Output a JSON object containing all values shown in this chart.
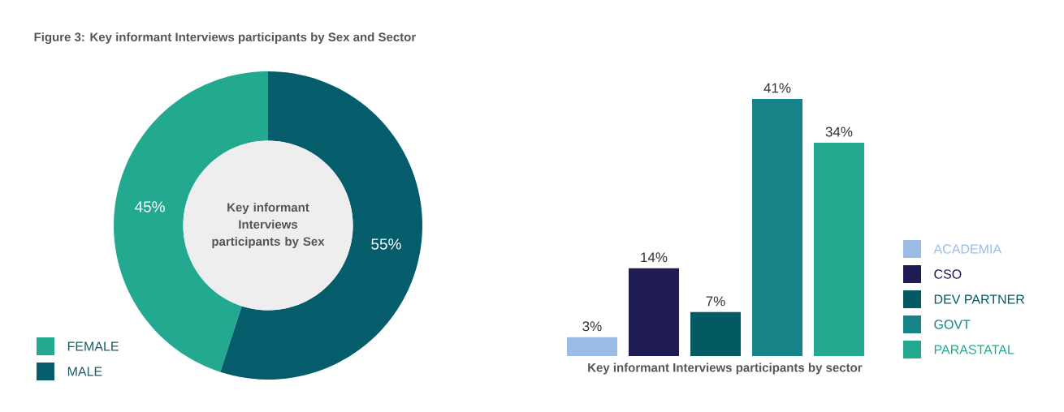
{
  "chart_data": [
    {
      "type": "donut",
      "title": "Figure 3: Key informant Interviews participants by Sex and Sector",
      "annotations": [
        "Key informant Interviews participants by Sex"
      ],
      "categories": [
        "FEMALE",
        "MALE"
      ],
      "values": [
        45,
        55
      ],
      "value_labels": [
        "45%",
        "55%"
      ],
      "colors": [
        "#22a990",
        "#055c6a"
      ],
      "legend": "bottom left"
    },
    {
      "type": "bar",
      "xlabel": "Key informant Interviews participants by sector",
      "categories": [
        null,
        null,
        null,
        null,
        null
      ],
      "legend": "right",
      "stacked": true,
      "series": [
        {
          "name": "ACADEMIA",
          "color": "#9bbde5",
          "values": [
            3,
            null,
            null,
            null,
            null
          ],
          "value_labels": [
            "3%",
            null,
            null,
            null,
            null
          ]
        },
        {
          "name": "CSO",
          "color": "#1e1c52",
          "values": [
            null,
            14,
            null,
            null,
            null
          ],
          "value_labels": [
            null,
            "14%",
            null,
            null,
            null
          ]
        },
        {
          "name": "DEV PARTNER",
          "color": "#035a63",
          "values": [
            null,
            null,
            7,
            null,
            null
          ],
          "value_labels": [
            null,
            null,
            "7%",
            null,
            null
          ]
        },
        {
          "name": "GOVT",
          "color": "#178489",
          "values": [
            null,
            null,
            null,
            41,
            null
          ],
          "value_labels": [
            null,
            null,
            null,
            "41%",
            null
          ]
        },
        {
          "name": "PARASTATAL",
          "color": "#22a990",
          "values": [
            null,
            null,
            null,
            null,
            34
          ],
          "value_labels": [
            null,
            null,
            null,
            null,
            "34%"
          ]
        }
      ]
    }
  ]
}
